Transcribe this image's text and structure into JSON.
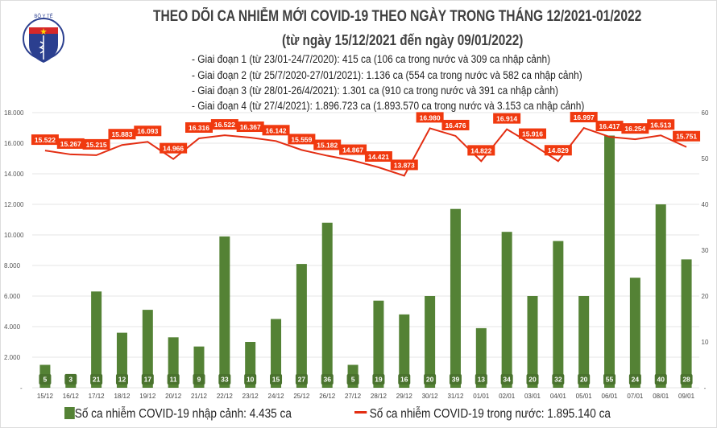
{
  "header": {
    "logo_text": "BỘ Y TẾ · MINISTRY OF HEALTH",
    "title": "THEO DÕI CA NHIỄM MỚI COVID-19 THEO NGÀY TRONG THÁNG 12/2021-01/2022",
    "subtitle": "(từ ngày 15/12/2021 đến ngày 09/01/2022)",
    "stages": [
      "- Giai đoạn 1 (từ 23/01-24/7/2020): 415 ca (106 ca trong nước và 309 ca nhập cảnh)",
      "- Giai đoạn 2 (từ 25/7/2020-27/01/2021): 1.136 ca (554 ca trong nước và 582 ca nhập cảnh)",
      "- Giai đoạn 3 (từ 28/01-26/4/2021): 1.301 ca (910 ca trong nước và 391 ca nhập cảnh)",
      "- Giai đoạn 4 (từ 27/4/2021): 1.896.723 ca (1.893.570 ca trong nước và 3.153 ca nhập cảnh)"
    ]
  },
  "chart_data": {
    "type": "bar+line",
    "categories": [
      "15/12",
      "16/12",
      "17/12",
      "18/12",
      "19/12",
      "20/12",
      "21/12",
      "22/12",
      "23/12",
      "24/12",
      "25/12",
      "26/12",
      "27/12",
      "28/12",
      "29/12",
      "30/12",
      "31/12",
      "01/01",
      "02/01",
      "03/01",
      "04/01",
      "05/01",
      "06/01",
      "07/01",
      "08/01",
      "09/01"
    ],
    "series": [
      {
        "name": "Số ca nhiễm COVID-19 nhập cảnh: 4.435 ca",
        "type": "bar",
        "axis": "right",
        "color": "#548235",
        "values": [
          5,
          3,
          21,
          12,
          17,
          11,
          9,
          33,
          10,
          15,
          27,
          36,
          5,
          19,
          16,
          20,
          39,
          13,
          34,
          20,
          32,
          20,
          55,
          24,
          40,
          28
        ]
      },
      {
        "name": "Số ca nhiễm COVID-19 trong nước: 1.895.140 ca",
        "type": "line",
        "axis": "left",
        "color": "#e32d12",
        "values": [
          15522,
          15267,
          15215,
          15883,
          16093,
          14966,
          16316,
          16522,
          16367,
          16142,
          15559,
          15182,
          14867,
          14421,
          13873,
          16980,
          16476,
          14822,
          16914,
          15916,
          14829,
          16997,
          16417,
          16254,
          16513,
          15751
        ],
        "labels": [
          "15.522",
          "15.267",
          "15.215",
          "15.883",
          "16.093",
          "14.966",
          "16.316",
          "16.522",
          "16.367",
          "16.142",
          "15.559",
          "15.182",
          "14.867",
          "14.421",
          "13.873",
          "16.980",
          "16.476",
          "14.822",
          "16.914",
          "15.916",
          "14.829",
          "16.997",
          "16.417",
          "16.254",
          "16.513",
          "15.751"
        ]
      }
    ],
    "left_axis": {
      "range": [
        0,
        18000
      ],
      "ticks": [
        "-",
        "2.000",
        "4.000",
        "6.000",
        "8.000",
        "10.000",
        "12.000",
        "14.000",
        "16.000",
        "18.000"
      ]
    },
    "right_axis": {
      "range": [
        0,
        60
      ],
      "ticks": [
        "-",
        "10",
        "20",
        "30",
        "40",
        "50",
        "60"
      ]
    },
    "grid": true,
    "legend_position": "bottom"
  }
}
